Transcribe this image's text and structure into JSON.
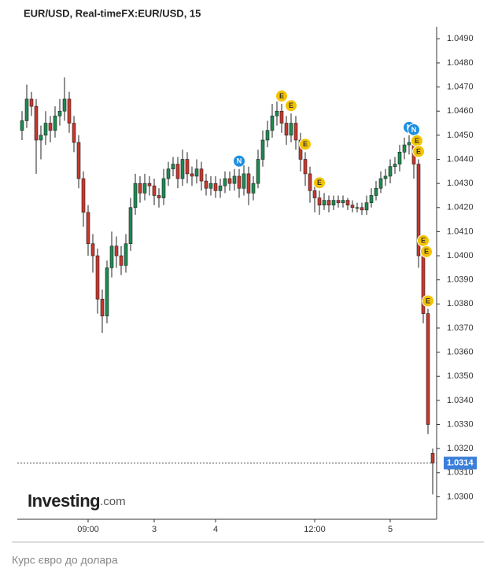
{
  "chart_data": {
    "type": "candlestick",
    "title": "EUR/USD, Real-timeFX:EUR/USD, 15",
    "categories": [
      null,
      null,
      null,
      null,
      null,
      null,
      null,
      null,
      null,
      null,
      null,
      null,
      null,
      null,
      "09:00",
      null,
      null,
      null,
      null,
      null,
      null,
      null,
      null,
      null,
      null,
      null,
      null,
      null,
      "3",
      null,
      null,
      null,
      null,
      null,
      null,
      null,
      null,
      null,
      null,
      null,
      null,
      "4",
      null,
      null,
      null,
      null,
      null,
      null,
      null,
      null,
      null,
      null,
      null,
      null,
      null,
      null,
      null,
      null,
      null,
      null,
      null,
      null,
      "12:00",
      null,
      null,
      null,
      null,
      null,
      null,
      null,
      null,
      null,
      null,
      null,
      null,
      null,
      null,
      null,
      "5",
      null,
      null,
      null,
      null,
      null,
      null,
      null,
      null,
      null
    ],
    "open": [
      1.0452,
      1.0456,
      1.0465,
      1.0462,
      1.0448,
      1.045,
      1.0455,
      1.0452,
      1.0458,
      1.046,
      1.0465,
      1.0455,
      1.0447,
      1.0432,
      1.0418,
      1.0405,
      1.04,
      1.0382,
      1.0375,
      1.0395,
      1.0404,
      1.04,
      1.0396,
      1.0405,
      1.042,
      1.043,
      1.0426,
      1.043,
      1.0429,
      1.0425,
      1.0424,
      1.0432,
      1.0436,
      1.0438,
      1.0432,
      1.044,
      1.0434,
      1.0433,
      1.0436,
      1.0431,
      1.0428,
      1.043,
      1.0427,
      1.0429,
      1.0432,
      1.043,
      1.0433,
      1.0428,
      1.0434,
      1.0426,
      1.043,
      1.044,
      1.0448,
      1.0452,
      1.0458,
      1.046,
      1.0455,
      1.045,
      1.0455,
      1.0448,
      1.044,
      1.0434,
      1.0427,
      1.0424,
      1.0421,
      1.0423,
      1.0421,
      1.0423,
      1.0422,
      1.0423,
      1.0421,
      1.042,
      1.042,
      1.0419,
      1.0422,
      1.0425,
      1.0428,
      1.0432,
      1.0433,
      1.0437,
      1.0438,
      1.0443,
      1.0446,
      1.0447,
      1.0438,
      1.04,
      1.0376,
      1.0318
    ],
    "high": [
      1.046,
      1.0471,
      1.0468,
      1.0465,
      1.0454,
      1.046,
      1.0458,
      1.0462,
      1.0465,
      1.0474,
      1.0468,
      1.0458,
      1.045,
      1.0435,
      1.0421,
      1.0409,
      1.0403,
      1.0386,
      1.0398,
      1.041,
      1.0408,
      1.0404,
      1.0409,
      1.0424,
      1.0434,
      1.0433,
      1.0434,
      1.0433,
      1.0432,
      1.0428,
      1.0436,
      1.0439,
      1.0441,
      1.0441,
      1.0444,
      1.0443,
      1.0437,
      1.044,
      1.0439,
      1.0434,
      1.0433,
      1.0433,
      1.0432,
      1.0435,
      1.0435,
      1.0436,
      1.0436,
      1.0438,
      1.0437,
      1.0433,
      1.0444,
      1.0452,
      1.0456,
      1.0463,
      1.0464,
      1.0463,
      1.0458,
      1.0459,
      1.0458,
      1.0451,
      1.0443,
      1.0437,
      1.043,
      1.0427,
      1.0426,
      1.0425,
      1.0425,
      1.0425,
      1.0425,
      1.0424,
      1.0423,
      1.0422,
      1.0422,
      1.0425,
      1.0428,
      1.0431,
      1.0435,
      1.0436,
      1.044,
      1.0441,
      1.0446,
      1.0449,
      1.045,
      1.0449,
      1.044,
      1.0403,
      1.0378,
      1.032
    ],
    "low": [
      1.0448,
      1.0453,
      1.0458,
      1.0434,
      1.044,
      1.0446,
      1.0447,
      1.0449,
      1.0454,
      1.0456,
      1.0451,
      1.0443,
      1.0428,
      1.0412,
      1.04,
      1.0393,
      1.0376,
      1.0368,
      1.0372,
      1.0391,
      1.0395,
      1.0392,
      1.0393,
      1.0402,
      1.0417,
      1.0422,
      1.0423,
      1.0425,
      1.0421,
      1.042,
      1.0421,
      1.0429,
      1.0433,
      1.0428,
      1.0429,
      1.043,
      1.0429,
      1.043,
      1.0427,
      1.0425,
      1.0425,
      1.0424,
      1.0424,
      1.0426,
      1.0427,
      1.0427,
      1.0424,
      1.0425,
      1.0421,
      1.0423,
      1.0428,
      1.0437,
      1.0445,
      1.0449,
      1.0454,
      1.0451,
      1.0446,
      1.0447,
      1.0444,
      1.0435,
      1.0429,
      1.0422,
      1.0418,
      1.0417,
      1.0419,
      1.0418,
      1.0419,
      1.042,
      1.042,
      1.0419,
      1.0418,
      1.0418,
      1.0417,
      1.0417,
      1.042,
      1.0423,
      1.0426,
      1.0429,
      1.043,
      1.0434,
      1.0435,
      1.044,
      1.0442,
      1.0432,
      1.0395,
      1.0372,
      1.0326,
      1.0301
    ],
    "close": [
      1.0456,
      1.0465,
      1.0462,
      1.0448,
      1.045,
      1.0455,
      1.0452,
      1.0458,
      1.046,
      1.0465,
      1.0455,
      1.0447,
      1.0432,
      1.0418,
      1.0405,
      1.04,
      1.0382,
      1.0375,
      1.0395,
      1.0404,
      1.04,
      1.0396,
      1.0405,
      1.042,
      1.043,
      1.0426,
      1.043,
      1.0429,
      1.0425,
      1.0424,
      1.0432,
      1.0436,
      1.0438,
      1.0432,
      1.044,
      1.0434,
      1.0433,
      1.0436,
      1.0431,
      1.0428,
      1.043,
      1.0427,
      1.0429,
      1.0432,
      1.043,
      1.0433,
      1.0428,
      1.0434,
      1.0426,
      1.043,
      1.044,
      1.0448,
      1.0452,
      1.0458,
      1.046,
      1.0455,
      1.045,
      1.0455,
      1.0448,
      1.044,
      1.0434,
      1.0427,
      1.0424,
      1.0421,
      1.0423,
      1.0421,
      1.0423,
      1.0422,
      1.0423,
      1.0421,
      1.042,
      1.042,
      1.0419,
      1.0422,
      1.0425,
      1.0428,
      1.0432,
      1.0433,
      1.0437,
      1.0438,
      1.0443,
      1.0446,
      1.0447,
      1.0438,
      1.04,
      1.0376,
      1.033,
      1.0314
    ],
    "up_color": "#1e8a52",
    "down_color": "#c8372d",
    "ylim": [
      1.0291,
      1.0495
    ],
    "yticks": [
      {
        "value": 1.03,
        "label": "1.0300"
      },
      {
        "value": 1.031,
        "label": "1.0310"
      },
      {
        "value": 1.032,
        "label": "1.0320"
      },
      {
        "value": 1.033,
        "label": "1.0330"
      },
      {
        "value": 1.034,
        "label": "1.0340"
      },
      {
        "value": 1.035,
        "label": "1.0350"
      },
      {
        "value": 1.036,
        "label": "1.0360"
      },
      {
        "value": 1.037,
        "label": "1.0370"
      },
      {
        "value": 1.038,
        "label": "1.0380"
      },
      {
        "value": 1.039,
        "label": "1.0390"
      },
      {
        "value": 1.04,
        "label": "1.0400"
      },
      {
        "value": 1.041,
        "label": "1.0410"
      },
      {
        "value": 1.042,
        "label": "1.0420"
      },
      {
        "value": 1.043,
        "label": "1.0430"
      },
      {
        "value": 1.044,
        "label": "1.0440"
      },
      {
        "value": 1.045,
        "label": "1.0450"
      },
      {
        "value": 1.046,
        "label": "1.0460"
      },
      {
        "value": 1.047,
        "label": "1.0470"
      },
      {
        "value": 1.048,
        "label": "1.0480"
      },
      {
        "value": 1.049,
        "label": "1.0490"
      }
    ],
    "y_axis_side": "right",
    "grid": false,
    "last_price": 1.0314,
    "events": [
      {
        "label": "N",
        "candle": 46
      },
      {
        "label": "E",
        "candle": 55
      },
      {
        "label": "E",
        "candle": 57
      },
      {
        "label": "E",
        "candle": 60
      },
      {
        "label": "E",
        "candle": 63
      },
      {
        "label": "N",
        "candle": 82
      },
      {
        "label": "N",
        "candle": 83
      },
      {
        "label": "E",
        "candle": 83
      },
      {
        "label": "E",
        "candle": 84
      },
      {
        "label": "E",
        "candle": 85
      },
      {
        "label": "E",
        "candle": 85
      },
      {
        "label": "E",
        "candle": 86
      }
    ]
  },
  "logo": {
    "main": "Investing",
    "suffix": ".com"
  },
  "caption": "Курс євро до долара"
}
